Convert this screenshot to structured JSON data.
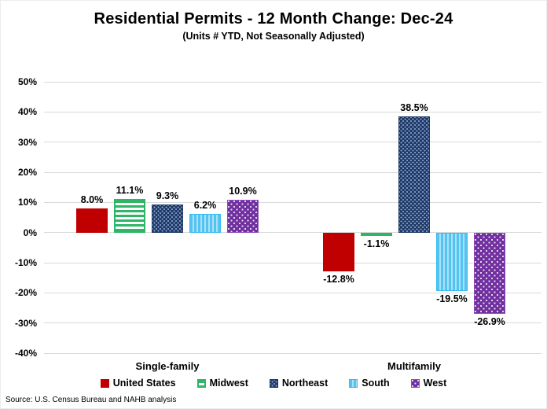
{
  "header": {
    "title": "Residential Permits - 12 Month Change:  Dec-24",
    "subtitle": "(Units # YTD, Not Seasonally Adjusted)"
  },
  "source": "Source: U.S. Census Bureau and NAHB analysis",
  "chart_data": {
    "type": "bar",
    "categories": [
      "Single-family",
      "Multifamily"
    ],
    "series": [
      {
        "name": "United States",
        "values": [
          8.0,
          -12.8
        ],
        "labels": [
          "8.0%",
          "-12.8%"
        ],
        "color": "#c00000",
        "pattern": "solid"
      },
      {
        "name": "Midwest",
        "values": [
          11.1,
          -1.1
        ],
        "labels": [
          "11.1%",
          "-1.1%"
        ],
        "color": "#2eb566",
        "pattern": "hstripes"
      },
      {
        "name": "Northeast",
        "values": [
          9.3,
          38.5
        ],
        "labels": [
          "9.3%",
          "38.5%"
        ],
        "color": "#1f3864",
        "pattern": "dotsfine"
      },
      {
        "name": "South",
        "values": [
          6.2,
          -19.5
        ],
        "labels": [
          "6.2%",
          "-19.5%"
        ],
        "color": "#56c2f0",
        "pattern": "vstripes"
      },
      {
        "name": "West",
        "values": [
          10.9,
          -26.9
        ],
        "labels": [
          "10.9%",
          "-26.9%"
        ],
        "color": "#7030a0",
        "pattern": "dots"
      }
    ],
    "ylim": [
      -40,
      50
    ],
    "ytick_step": 10,
    "ytick_labels": [
      "50%",
      "40%",
      "30%",
      "20%",
      "10%",
      "0%",
      "-10%",
      "-20%",
      "-30%",
      "-40%"
    ],
    "grid": true,
    "legend_position": "bottom"
  }
}
